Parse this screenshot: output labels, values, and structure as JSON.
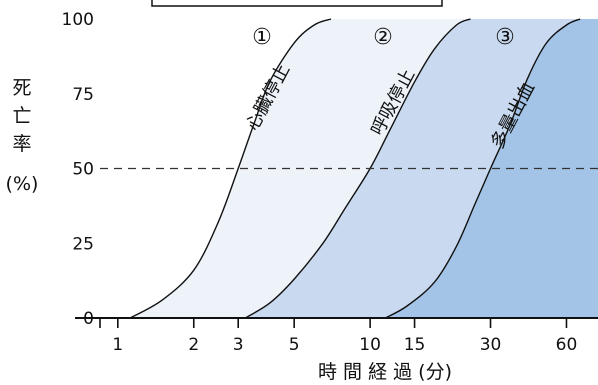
{
  "chart_data": {
    "type": "area",
    "title": "",
    "xlabel": "時 間 経 過 (分)",
    "ylabel_chars": [
      "死",
      "亡",
      "率"
    ],
    "ylabel_unit": "(%)",
    "x_scale": "log",
    "xlim": [
      0.85,
      80
    ],
    "ylim": [
      0,
      100
    ],
    "x_ticks": [
      1,
      2,
      3,
      5,
      10,
      15,
      30,
      60
    ],
    "x_tick_labels": [
      "1",
      "2",
      "3",
      "5",
      "10",
      "15",
      "30",
      "60"
    ],
    "y_ticks": [
      0,
      25,
      50,
      75,
      100
    ],
    "y_tick_labels": [
      "0",
      "25",
      "50",
      "75",
      "100"
    ],
    "reference_line": {
      "y": 50,
      "style": "dashed"
    },
    "series": [
      {
        "name": "心臓停止",
        "marker": "①",
        "color": "#eef3fa",
        "x": [
          1.12,
          1.5,
          2.0,
          2.5,
          3.0,
          3.5,
          4.0,
          5.0,
          6.0,
          7.0
        ],
        "y": [
          0,
          6,
          16,
          32,
          50,
          66,
          79,
          92,
          98,
          100
        ]
      },
      {
        "name": "呼吸停止",
        "marker": "②",
        "color": "#c9daf0",
        "x": [
          3.2,
          4.0,
          5.0,
          6.5,
          8.0,
          10.0,
          12.0,
          15.0,
          18.0,
          22.0,
          25.0
        ],
        "y": [
          0,
          5,
          13,
          25,
          37,
          50,
          63,
          79,
          90,
          98,
          100
        ]
      },
      {
        "name": "多量出血",
        "marker": "③",
        "color": "#a3c4e7",
        "x": [
          11.5,
          14.0,
          18.0,
          22.0,
          26.0,
          30.0,
          36.0,
          42.0,
          50.0,
          60.0,
          68.0
        ],
        "y": [
          0,
          4,
          12,
          24,
          38,
          50,
          65,
          80,
          92,
          98,
          100
        ]
      }
    ]
  }
}
